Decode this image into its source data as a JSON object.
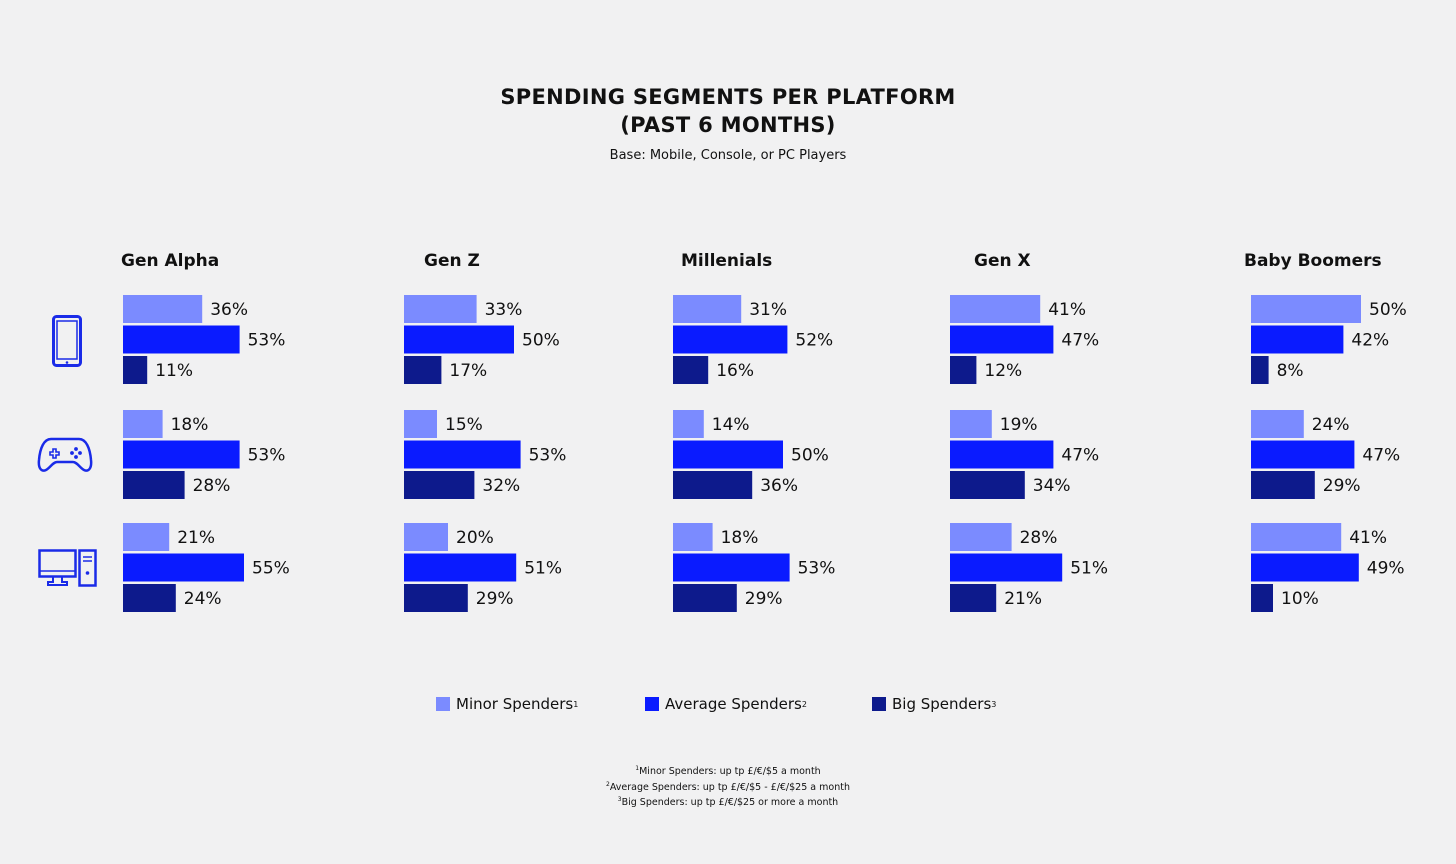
{
  "title_line1": "SPENDING SEGMENTS PER PLATFORM",
  "title_line2": "(PAST 6 MONTHS)",
  "subtitle": "Base: Mobile, Console, or PC Players",
  "colors": {
    "minor": "#7b8bff",
    "average": "#0a1bff",
    "big": "#0d1a8c",
    "icon": "#1a2be8",
    "background": "#f1f1f2"
  },
  "platforms": [
    {
      "name": "Mobile",
      "icon": "smartphone-icon"
    },
    {
      "name": "Console",
      "icon": "gamepad-icon"
    },
    {
      "name": "PC",
      "icon": "desktop-pc-icon"
    }
  ],
  "legend": [
    {
      "label": "Minor Spenders",
      "sup": "1"
    },
    {
      "label": "Average Spenders",
      "sup": "2"
    },
    {
      "label": "Big Spenders",
      "sup": "3"
    }
  ],
  "footnotes": [
    {
      "sup": "1",
      "text": "Minor Spenders: up tp £/€/$5 a month"
    },
    {
      "sup": "2",
      "text": "Average Spenders: up tp £/€/$5 - £/€/$25 a month"
    },
    {
      "sup": "3",
      "text": "Big Spenders: up tp £/€/$25 or more a month"
    }
  ],
  "chart_data": {
    "type": "bar",
    "orientation": "horizontal",
    "unit": "%",
    "title": "SPENDING SEGMENTS PER PLATFORM (PAST 6 MONTHS)",
    "subtitle": "Base: Mobile, Console, or PC Players",
    "series_names": [
      "Minor Spenders",
      "Average Spenders",
      "Big Spenders"
    ],
    "groups": [
      {
        "generation": "Gen Alpha",
        "platforms": [
          {
            "platform": "Mobile",
            "values": [
              36,
              53,
              11
            ]
          },
          {
            "platform": "Console",
            "values": [
              18,
              53,
              28
            ]
          },
          {
            "platform": "PC",
            "values": [
              21,
              55,
              24
            ]
          }
        ]
      },
      {
        "generation": "Gen Z",
        "platforms": [
          {
            "platform": "Mobile",
            "values": [
              33,
              50,
              17
            ]
          },
          {
            "platform": "Console",
            "values": [
              15,
              53,
              32
            ]
          },
          {
            "platform": "PC",
            "values": [
              20,
              51,
              29
            ]
          }
        ]
      },
      {
        "generation": "Millenials",
        "platforms": [
          {
            "platform": "Mobile",
            "values": [
              31,
              52,
              16
            ]
          },
          {
            "platform": "Console",
            "values": [
              14,
              50,
              36
            ]
          },
          {
            "platform": "PC",
            "values": [
              18,
              53,
              29
            ]
          }
        ]
      },
      {
        "generation": "Gen X",
        "platforms": [
          {
            "platform": "Mobile",
            "values": [
              41,
              47,
              12
            ]
          },
          {
            "platform": "Console",
            "values": [
              19,
              47,
              34
            ]
          },
          {
            "platform": "PC",
            "values": [
              28,
              51,
              21
            ]
          }
        ]
      },
      {
        "generation": "Baby Boomers",
        "platforms": [
          {
            "platform": "Mobile",
            "values": [
              50,
              42,
              8
            ]
          },
          {
            "platform": "Console",
            "values": [
              24,
              47,
              29
            ]
          },
          {
            "platform": "PC",
            "values": [
              41,
              49,
              10
            ]
          }
        ]
      }
    ],
    "legend_position": "bottom",
    "grid": false
  }
}
